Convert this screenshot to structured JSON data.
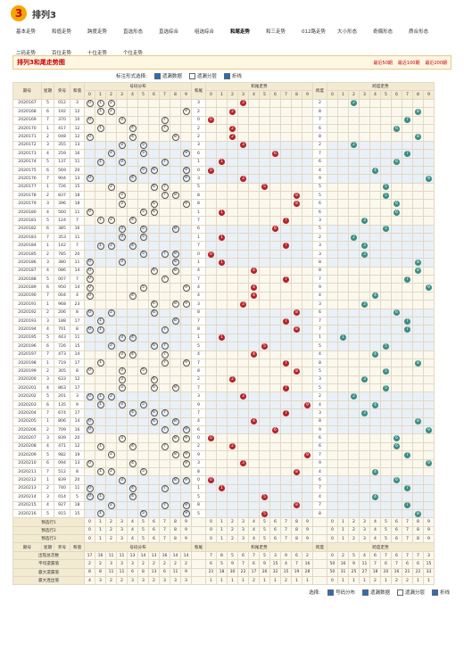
{
  "header": {
    "logo": "3",
    "title": "排列3"
  },
  "nav": [
    "基本走势",
    "和值走势",
    "跨度走势",
    "直选形态",
    "直选综合",
    "组选综合",
    "和尾走势",
    "和三走势",
    "012路走势",
    "大小形态",
    "奇偶形态",
    "质合形态",
    "二码走势",
    "百位走势",
    "十位走势",
    "个位走势"
  ],
  "active_nav": 6,
  "chart_title": "排列3和尾走势图",
  "ranges": [
    "最近50期",
    "最近100期",
    "最近200期"
  ],
  "options": {
    "label": "标注形式选择:",
    "items": [
      "遗漏数据",
      "遗漏分层",
      "折线"
    ]
  },
  "table": {
    "headers": [
      "期号",
      "星期",
      "奖号",
      "和值",
      "号码分布",
      "和尾",
      "和尾走势",
      "跨度",
      "跨度走势"
    ],
    "digits": [
      0,
      1,
      2,
      3,
      4,
      5,
      6,
      7,
      8,
      9
    ],
    "rows": [
      [
        "2020167",
        5,
        "012",
        3,
        3,
        2
      ],
      [
        "2020168",
        6,
        "192",
        12,
        2,
        8
      ],
      [
        "2020169",
        7,
        "370",
        10,
        0,
        7
      ],
      [
        "2020170",
        1,
        "417",
        12,
        2,
        6
      ],
      [
        "2020171",
        2,
        "048",
        12,
        2,
        8
      ],
      [
        "2020172",
        3,
        "355",
        13,
        3,
        2
      ],
      [
        "2020173",
        4,
        "259",
        16,
        6,
        7
      ],
      [
        "2020174",
        5,
        "137",
        11,
        1,
        6
      ],
      [
        "2020175",
        6,
        "569",
        20,
        0,
        4
      ],
      [
        "2020176",
        7,
        "904",
        13,
        3,
        9
      ],
      [
        "2020177",
        1,
        "726",
        15,
        5,
        5
      ],
      [
        "2020178",
        2,
        "837",
        18,
        8,
        5
      ],
      [
        "2020179",
        3,
        "396",
        18,
        8,
        6
      ],
      [
        "2020180",
        4,
        "560",
        11,
        1,
        6
      ],
      [
        "2020181",
        5,
        "124",
        7,
        7,
        3
      ],
      [
        "2020182",
        6,
        "385",
        16,
        6,
        5
      ],
      [
        "2020183",
        7,
        "353",
        11,
        1,
        2
      ],
      [
        "2020184",
        1,
        "142",
        7,
        7,
        3
      ],
      [
        "2020185",
        2,
        "785",
        20,
        0,
        3
      ],
      [
        "2020186",
        3,
        "380",
        11,
        1,
        8
      ],
      [
        "2020187",
        4,
        "086",
        14,
        4,
        8
      ],
      [
        "2020188",
        5,
        "007",
        7,
        7,
        7
      ],
      [
        "2020189",
        6,
        "950",
        14,
        4,
        9
      ],
      [
        "2020190",
        7,
        "004",
        4,
        4,
        4
      ],
      [
        "2020191",
        1,
        "968",
        23,
        3,
        3
      ],
      [
        "2020192",
        2,
        "206",
        8,
        8,
        6
      ],
      [
        "2020193",
        3,
        "188",
        17,
        7,
        7
      ],
      [
        "2020194",
        4,
        "701",
        8,
        8,
        7
      ],
      [
        "2020195",
        5,
        "443",
        11,
        1,
        1
      ],
      [
        "2020196",
        6,
        "726",
        15,
        5,
        5
      ],
      [
        "2020197",
        7,
        "473",
        14,
        4,
        4
      ],
      [
        "2020198",
        1,
        "719",
        17,
        7,
        8
      ],
      [
        "2020199",
        2,
        "305",
        8,
        8,
        5
      ],
      [
        "2020200",
        3,
        "633",
        12,
        2,
        3
      ],
      [
        "2020201",
        4,
        "863",
        17,
        7,
        5
      ],
      [
        "2020202",
        5,
        "201",
        3,
        3,
        2
      ],
      [
        "2020203",
        6,
        "135",
        9,
        9,
        4
      ],
      [
        "2020204",
        7,
        "674",
        17,
        7,
        3
      ],
      [
        "2020205",
        1,
        "806",
        14,
        4,
        8
      ],
      [
        "2020206",
        2,
        "709",
        16,
        6,
        9
      ],
      [
        "2020207",
        3,
        "839",
        20,
        0,
        6
      ],
      [
        "2020208",
        4,
        "471",
        12,
        2,
        6
      ],
      [
        "2020209",
        5,
        "982",
        19,
        9,
        7
      ],
      [
        "2020210",
        6,
        "094",
        13,
        3,
        9
      ],
      [
        "2020211",
        7,
        "512",
        8,
        8,
        4
      ],
      [
        "2020212",
        1,
        "839",
        20,
        0,
        6
      ],
      [
        "2020213",
        2,
        "740",
        11,
        1,
        7
      ],
      [
        "2020214",
        3,
        "014",
        5,
        5,
        4
      ],
      [
        "2020215",
        4,
        "927",
        18,
        8,
        7
      ],
      [
        "2020216",
        5,
        "915",
        15,
        5,
        8
      ]
    ],
    "preview": [
      "预选行1",
      "预选行2",
      "预选行3"
    ],
    "stats": [
      {
        "label": "出现总次数",
        "values": [
          17,
          16,
          11,
          11,
          13,
          14,
          13,
          16,
          14,
          14,
          7,
          8,
          5,
          6,
          7,
          5,
          3,
          9,
          6,
          2,
          0,
          2,
          5,
          4,
          6,
          7,
          6,
          7,
          7,
          3
        ]
      },
      {
        "label": "平均遗漏值",
        "values": [
          2,
          2,
          3,
          3,
          3,
          2,
          2,
          2,
          2,
          2,
          6,
          5,
          9,
          7,
          6,
          9,
          15,
          4,
          7,
          16,
          50,
          16,
          9,
          11,
          7,
          6,
          7,
          6,
          6,
          15
        ]
      },
      {
        "label": "最大遗漏值",
        "values": [
          8,
          8,
          11,
          11,
          6,
          8,
          13,
          6,
          11,
          9,
          21,
          18,
          30,
          22,
          17,
          26,
          32,
          15,
          19,
          28,
          50,
          31,
          25,
          27,
          18,
          20,
          16,
          21,
          22,
          33
        ]
      },
      {
        "label": "最大连出值",
        "values": [
          4,
          3,
          2,
          2,
          3,
          3,
          2,
          3,
          3,
          3,
          1,
          1,
          1,
          1,
          2,
          1,
          1,
          2,
          1,
          1,
          0,
          1,
          1,
          1,
          2,
          1,
          2,
          2,
          1,
          1
        ]
      }
    ]
  },
  "footer": {
    "label": "选择:",
    "items": [
      "号码分布",
      "遗漏数据",
      "遗漏分层",
      "折线"
    ]
  }
}
